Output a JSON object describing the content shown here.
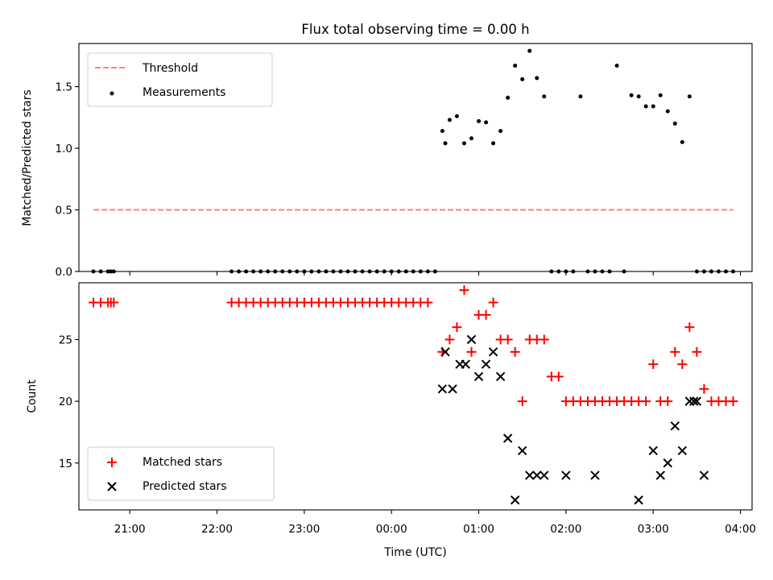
{
  "chart_data": [
    {
      "type": "scatter",
      "title": "Flux total observing time = 0.00 h",
      "xlabel": "",
      "ylabel": "Matched/Predicted stars",
      "xlim": [
        "20:25",
        "04:08"
      ],
      "ylim": [
        0,
        1.85
      ],
      "yticks": [
        0.0,
        0.5,
        1.0,
        1.5
      ],
      "ytick_labels": [
        "0.0",
        "0.5",
        "1.0",
        "1.5"
      ],
      "legend_position": "top-left",
      "series": [
        {
          "name": "Threshold",
          "style": "dashed-line",
          "color": "#ff7f7f",
          "x": [
            "20:35",
            "03:55"
          ],
          "y": [
            0.5,
            0.5
          ]
        },
        {
          "name": "Measurements",
          "style": "dot",
          "color": "#000000",
          "x": [
            "20:35",
            "20:40",
            "20:45",
            "20:47",
            "20:49",
            "22:10",
            "22:15",
            "22:20",
            "22:25",
            "22:30",
            "22:35",
            "22:40",
            "22:45",
            "22:50",
            "22:55",
            "23:00",
            "23:05",
            "23:10",
            "23:15",
            "23:20",
            "23:25",
            "23:30",
            "23:35",
            "23:40",
            "23:45",
            "23:50",
            "23:55",
            "00:00",
            "00:05",
            "00:10",
            "00:15",
            "00:20",
            "00:25",
            "00:30",
            "00:35",
            "00:37",
            "00:40",
            "00:45",
            "00:50",
            "00:55",
            "01:00",
            "01:05",
            "01:10",
            "01:15",
            "01:20",
            "01:25",
            "01:30",
            "01:35",
            "01:40",
            "01:45",
            "01:50",
            "01:55",
            "02:00",
            "02:05",
            "02:10",
            "02:15",
            "02:20",
            "02:25",
            "02:30",
            "02:35",
            "02:40",
            "02:45",
            "02:50",
            "02:55",
            "03:00",
            "03:05",
            "03:10",
            "03:15",
            "03:20",
            "03:25",
            "03:30",
            "03:35",
            "03:40",
            "03:45",
            "03:50",
            "03:55"
          ],
          "y": [
            0,
            0,
            0,
            0,
            0,
            0,
            0,
            0,
            0,
            0,
            0,
            0,
            0,
            0,
            0,
            0,
            0,
            0,
            0,
            0,
            0,
            0,
            0,
            0,
            0,
            0,
            0,
            0,
            0,
            0,
            0,
            0,
            0,
            0,
            1.14,
            1.04,
            1.23,
            1.26,
            1.04,
            1.08,
            1.22,
            1.21,
            1.04,
            1.14,
            1.41,
            1.67,
            1.56,
            1.79,
            1.57,
            1.42,
            0,
            0,
            0,
            0,
            1.42,
            0,
            0,
            0,
            0,
            1.67,
            0,
            1.43,
            1.42,
            1.34,
            1.34,
            1.43,
            1.3,
            1.2,
            1.05,
            1.42,
            0,
            0,
            0,
            0,
            0,
            0
          ]
        }
      ]
    },
    {
      "type": "scatter",
      "title": "",
      "xlabel": "Time (UTC)",
      "ylabel": "Count",
      "xlim": [
        "20:25",
        "04:08"
      ],
      "ylim": [
        11.2,
        29.6
      ],
      "yticks": [
        15,
        20,
        25
      ],
      "ytick_labels": [
        "15",
        "20",
        "25"
      ],
      "xtick_labels": [
        "21:00",
        "22:00",
        "23:00",
        "00:00",
        "01:00",
        "02:00",
        "03:00",
        "04:00"
      ],
      "legend_position": "bottom-left",
      "series": [
        {
          "name": "Matched stars",
          "marker": "plus",
          "color": "#ff0000",
          "x": [
            "20:35",
            "20:40",
            "20:45",
            "20:47",
            "20:49",
            "22:10",
            "22:15",
            "22:20",
            "22:25",
            "22:30",
            "22:35",
            "22:40",
            "22:45",
            "22:50",
            "22:55",
            "23:00",
            "23:05",
            "23:10",
            "23:15",
            "23:20",
            "23:25",
            "23:30",
            "23:35",
            "23:40",
            "23:45",
            "23:50",
            "23:55",
            "00:00",
            "00:05",
            "00:10",
            "00:15",
            "00:20",
            "00:25",
            "00:35",
            "00:40",
            "00:45",
            "00:50",
            "00:55",
            "01:00",
            "01:05",
            "01:10",
            "01:15",
            "01:20",
            "01:25",
            "01:30",
            "01:35",
            "01:40",
            "01:45",
            "01:50",
            "01:55",
            "02:00",
            "02:05",
            "02:10",
            "02:15",
            "02:20",
            "02:25",
            "02:30",
            "02:35",
            "02:40",
            "02:45",
            "02:50",
            "02:55",
            "03:00",
            "03:05",
            "03:10",
            "03:15",
            "03:20",
            "03:25",
            "03:30",
            "03:35",
            "03:40",
            "03:45",
            "03:50",
            "03:55"
          ],
          "y": [
            28,
            28,
            28,
            28,
            28,
            28,
            28,
            28,
            28,
            28,
            28,
            28,
            28,
            28,
            28,
            28,
            28,
            28,
            28,
            28,
            28,
            28,
            28,
            28,
            28,
            28,
            28,
            28,
            28,
            28,
            28,
            28,
            28,
            24,
            25,
            26,
            29,
            24,
            27,
            27,
            28,
            25,
            25,
            24,
            20,
            25,
            25,
            25,
            22,
            22,
            20,
            20,
            20,
            20,
            20,
            20,
            20,
            20,
            20,
            20,
            20,
            20,
            23,
            20,
            20,
            24,
            23,
            26,
            24,
            21,
            20,
            20,
            20,
            20
          ]
        },
        {
          "name": "Predicted stars",
          "marker": "x",
          "color": "#000000",
          "x": [
            "00:35",
            "00:37",
            "00:42",
            "00:47",
            "00:51",
            "00:55",
            "01:00",
            "01:05",
            "01:10",
            "01:15",
            "01:20",
            "01:25",
            "01:30",
            "01:35",
            "01:40",
            "01:45",
            "02:00",
            "02:20",
            "02:50",
            "03:00",
            "03:05",
            "03:10",
            "03:15",
            "03:20",
            "03:25",
            "03:28",
            "03:30",
            "03:35"
          ],
          "y": [
            21,
            24,
            21,
            23,
            23,
            25,
            22,
            23,
            24,
            22,
            17,
            12,
            16,
            14,
            14,
            14,
            14,
            14,
            12,
            16,
            14,
            15,
            18,
            16,
            20,
            20,
            20,
            14
          ]
        }
      ]
    }
  ]
}
